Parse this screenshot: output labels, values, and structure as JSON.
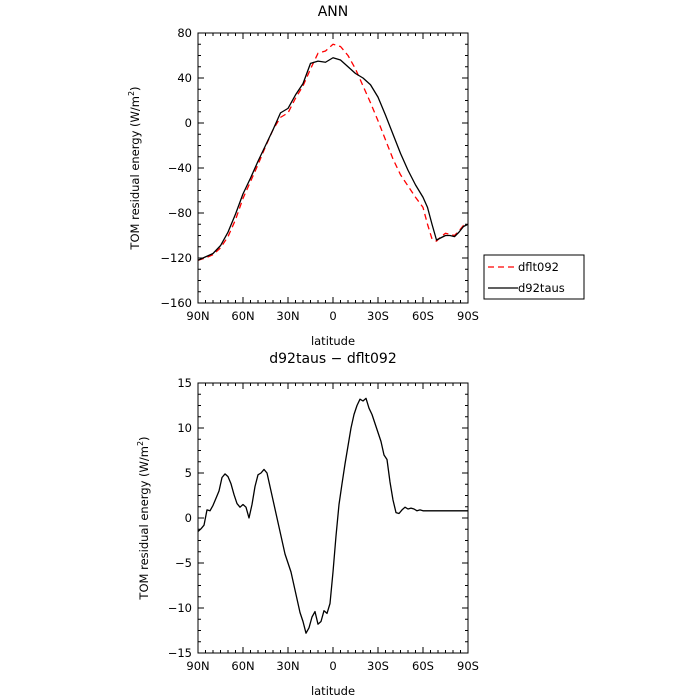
{
  "chart_data": [
    {
      "type": "line",
      "title": "ANN",
      "xlabel": "latitude",
      "ylabel": "TOM residual energy (W/m²)",
      "ylabel_parts": {
        "main": "TOM residual energy (W/m",
        "sup": "2",
        "tail": ")"
      },
      "xlim": [
        90,
        -90
      ],
      "ylim": [
        -160,
        80
      ],
      "x_ticks": [
        90,
        60,
        30,
        0,
        -30,
        -60,
        -90
      ],
      "x_tick_labels": [
        "90N",
        "60N",
        "30N",
        "0",
        "30S",
        "60S",
        "90S"
      ],
      "y_ticks": [
        -160,
        -120,
        -80,
        -40,
        0,
        40,
        80
      ],
      "y_tick_labels": [
        "−160",
        "−120",
        "−80",
        "−40",
        "0",
        "40",
        "80"
      ],
      "legend_placement": "right",
      "grid": false,
      "series": [
        {
          "name": "dflt092",
          "color": "#ff0000",
          "dash": "dashed",
          "x": [
            90,
            85,
            80,
            75,
            70,
            65,
            60,
            55,
            50,
            45,
            40,
            35,
            30,
            25,
            20,
            15,
            10,
            5,
            0,
            -5,
            -10,
            -15,
            -20,
            -25,
            -30,
            -35,
            -40,
            -45,
            -50,
            -55,
            -60,
            -63,
            -66,
            -69,
            -72,
            -75,
            -78,
            -81,
            -84,
            -87,
            -90
          ],
          "y": [
            -122,
            -120,
            -117,
            -111,
            -101,
            -86,
            -67,
            -52,
            -37,
            -21,
            -6,
            5,
            9,
            22,
            33,
            48,
            62,
            64,
            70,
            68,
            60,
            48,
            33,
            18,
            2,
            -15,
            -32,
            -46,
            -56,
            -66,
            -75,
            -90,
            -103,
            -105,
            -101,
            -98,
            -99,
            -100,
            -96,
            -91,
            -90
          ]
        },
        {
          "name": "d92taus",
          "color": "#000000",
          "dash": "solid",
          "x": [
            90,
            85,
            80,
            75,
            70,
            65,
            60,
            55,
            50,
            45,
            40,
            35,
            30,
            25,
            20,
            15,
            10,
            5,
            0,
            -5,
            -10,
            -15,
            -20,
            -25,
            -30,
            -35,
            -40,
            -45,
            -50,
            -55,
            -60,
            -63,
            -66,
            -69,
            -72,
            -75,
            -78,
            -81,
            -84,
            -87,
            -90
          ],
          "y": [
            -122,
            -119,
            -116,
            -109,
            -97,
            -81,
            -63,
            -49,
            -34,
            -20,
            -6,
            9,
            13,
            25,
            35,
            53,
            55,
            54,
            58,
            56,
            50,
            44,
            40,
            34,
            23,
            7,
            -10,
            -27,
            -42,
            -55,
            -66,
            -75,
            -90,
            -104,
            -102,
            -100,
            -100,
            -101,
            -97,
            -92,
            -90
          ]
        }
      ]
    },
    {
      "type": "line",
      "title": "d92taus − dflt092",
      "xlabel": "latitude",
      "ylabel": "TOM residual energy (W/m²)",
      "ylabel_parts": {
        "main": "TOM residual energy (W/m",
        "sup": "2",
        "tail": ")"
      },
      "xlim": [
        90,
        -90
      ],
      "ylim": [
        -15,
        15
      ],
      "x_ticks": [
        90,
        60,
        30,
        0,
        -30,
        -60,
        -90
      ],
      "x_tick_labels": [
        "90N",
        "60N",
        "30N",
        "0",
        "30S",
        "60S",
        "90S"
      ],
      "y_ticks": [
        -15,
        -10,
        -5,
        0,
        5,
        10,
        15
      ],
      "y_tick_labels": [
        "−15",
        "−10",
        "−5",
        "0",
        "5",
        "10",
        "15"
      ],
      "grid": false,
      "series": [
        {
          "color": "#000000",
          "dash": "solid",
          "x": [
            90,
            88,
            86,
            84,
            82,
            80,
            78,
            76,
            74,
            72,
            70,
            68,
            66,
            64,
            62,
            60,
            58,
            56,
            54,
            52,
            50,
            48,
            46,
            44,
            42,
            40,
            38,
            36,
            34,
            32,
            30,
            28,
            26,
            24,
            22,
            20,
            18,
            16,
            14,
            12,
            10,
            8,
            6,
            4,
            2,
            0,
            -2,
            -4,
            -6,
            -8,
            -10,
            -12,
            -14,
            -16,
            -18,
            -20,
            -22,
            -24,
            -26,
            -28,
            -30,
            -32,
            -34,
            -36,
            -38,
            -40,
            -42,
            -44,
            -46,
            -48,
            -50,
            -52,
            -54,
            -56,
            -58,
            -60,
            -62,
            -64,
            -66,
            -68,
            -70,
            -72,
            -74,
            -76,
            -78,
            -80,
            -82,
            -84,
            -86,
            -88,
            -90
          ],
          "y": [
            -1.5,
            -1.2,
            -0.8,
            0.9,
            0.8,
            1.4,
            2.2,
            3.0,
            4.5,
            4.9,
            4.6,
            3.8,
            2.6,
            1.6,
            1.2,
            1.5,
            1.2,
            0.0,
            1.5,
            3.5,
            4.8,
            5.0,
            5.4,
            5.0,
            3.5,
            2.0,
            0.5,
            -1.0,
            -2.5,
            -4.0,
            -5.0,
            -6.0,
            -7.5,
            -9.0,
            -10.5,
            -11.5,
            -12.8,
            -12.2,
            -11.0,
            -10.4,
            -11.8,
            -11.5,
            -10.3,
            -10.6,
            -9.5,
            -6.0,
            -2.0,
            1.5,
            3.8,
            6.0,
            8.0,
            10.0,
            11.5,
            12.5,
            13.2,
            13.0,
            13.3,
            12.2,
            11.5,
            10.5,
            9.5,
            8.5,
            7.0,
            6.5,
            4.0,
            2.0,
            0.6,
            0.5,
            0.9,
            1.2,
            1.0,
            1.1,
            1.0,
            0.8,
            0.9,
            0.8,
            0.8,
            0.8,
            0.8,
            0.8,
            0.8,
            0.8,
            0.8,
            0.8,
            0.8,
            0.8,
            0.8,
            0.8,
            0.8,
            0.8,
            0.8
          ]
        }
      ]
    }
  ]
}
